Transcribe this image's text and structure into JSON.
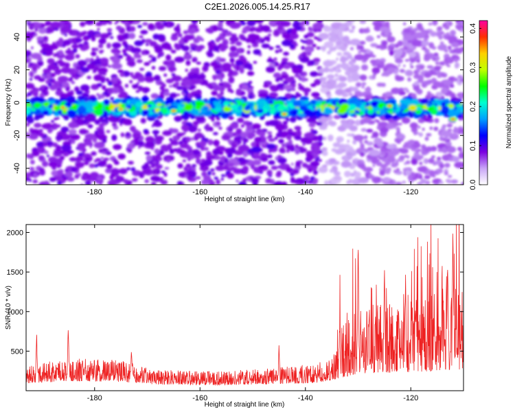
{
  "title": "C2E1.2026.005.14.25.R17",
  "chart_data": [
    {
      "type": "heatmap",
      "xlabel": "Height of straight line (km)",
      "ylabel": "Frequency (Hz)",
      "xlim": [
        -193,
        -110
      ],
      "ylim": [
        -50,
        50
      ],
      "xticks": [
        -180,
        -160,
        -140,
        -120
      ],
      "yticks": [
        -40,
        -20,
        0,
        20,
        40
      ],
      "colorbar": {
        "label": "Normalized spectral amplitude",
        "range": [
          0.0,
          0.42
        ],
        "ticks": [
          0.0,
          0.1,
          0.2,
          0.3,
          0.4
        ],
        "tick_labels": [
          "0.0",
          "0.1",
          "0.2",
          "0.3",
          "0.4"
        ],
        "colormap": "rainbow",
        "stops": [
          "#ffffff",
          "#c9a5f7",
          "#7a00e0",
          "#0000ff",
          "#00a0ff",
          "#00ffd0",
          "#00ff00",
          "#c0ff00",
          "#ffd000",
          "#ff3000",
          "#ff00a0"
        ]
      },
      "band": {
        "center_freq_hz": -3,
        "width_hz": 8,
        "peak_amplitude": 0.38
      }
    },
    {
      "type": "line",
      "xlabel": "Height of straight line (km)",
      "ylabel": "SNR (10 * v/v)",
      "xlim": [
        -193,
        -110
      ],
      "ylim": [
        0,
        2100
      ],
      "xticks": [
        -180,
        -160,
        -140,
        -120
      ],
      "yticks": [
        500,
        1000,
        1500,
        2000
      ],
      "color": "#ee2222",
      "peaks": [
        {
          "x": -191,
          "y": 740
        },
        {
          "x": -185,
          "y": 880
        },
        {
          "x": -173,
          "y": 520
        },
        {
          "x": -145,
          "y": 560
        },
        {
          "x": -130,
          "y": 1930
        },
        {
          "x": -125,
          "y": 1540
        },
        {
          "x": -121,
          "y": 1500
        },
        {
          "x": -113,
          "y": 1820
        },
        {
          "x": -112,
          "y": 2100
        }
      ],
      "baseline": [
        {
          "x": -193,
          "y": 200
        },
        {
          "x": -185,
          "y": 270
        },
        {
          "x": -175,
          "y": 250
        },
        {
          "x": -168,
          "y": 170
        },
        {
          "x": -155,
          "y": 160
        },
        {
          "x": -145,
          "y": 190
        },
        {
          "x": -138,
          "y": 220
        },
        {
          "x": -134,
          "y": 330
        },
        {
          "x": -130,
          "y": 480
        },
        {
          "x": -120,
          "y": 520
        },
        {
          "x": -110,
          "y": 600
        }
      ]
    }
  ]
}
